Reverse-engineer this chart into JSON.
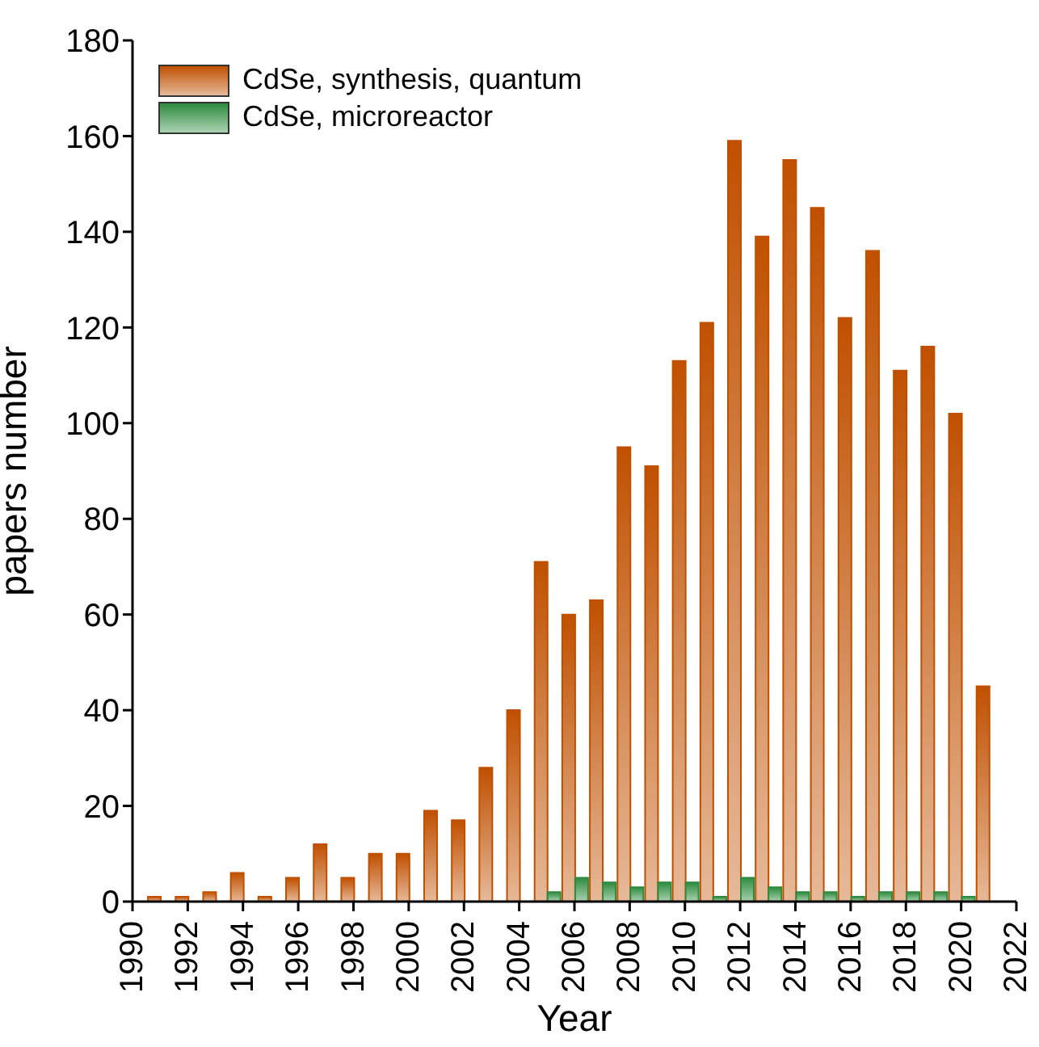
{
  "chart_data": {
    "type": "bar",
    "xlabel": "Year",
    "ylabel": "papers number",
    "x": [
      1991,
      1992,
      1993,
      1994,
      1995,
      1996,
      1997,
      1998,
      1999,
      2000,
      2001,
      2002,
      2003,
      2004,
      2005,
      2006,
      2007,
      2008,
      2009,
      2010,
      2011,
      2012,
      2013,
      2014,
      2015,
      2016,
      2017,
      2018,
      2019,
      2020,
      2021
    ],
    "series": [
      {
        "name": "CdSe, synthesis, quantum",
        "color": "#c05000",
        "values": [
          1,
          1,
          2,
          6,
          1,
          5,
          12,
          5,
          10,
          10,
          19,
          17,
          28,
          40,
          71,
          60,
          63,
          95,
          91,
          113,
          121,
          159,
          139,
          155,
          145,
          122,
          136,
          111,
          116,
          102,
          45
        ]
      },
      {
        "name": "CdSe, microreactor",
        "color": "#2e8b3e",
        "values": [
          null,
          null,
          null,
          null,
          null,
          null,
          null,
          null,
          null,
          null,
          null,
          null,
          null,
          null,
          2,
          5,
          4,
          3,
          4,
          4,
          1,
          5,
          3,
          2,
          2,
          1,
          2,
          2,
          2,
          1,
          null
        ]
      }
    ],
    "xlim": [
      1990,
      2022
    ],
    "xticks": [
      1990,
      1992,
      1994,
      1996,
      1998,
      2000,
      2002,
      2004,
      2006,
      2008,
      2010,
      2012,
      2014,
      2016,
      2018,
      2020,
      2022
    ],
    "ylim": [
      0,
      180
    ],
    "yticks": [
      0,
      20,
      40,
      60,
      80,
      100,
      120,
      140,
      160,
      180
    ],
    "grid": false,
    "legend": "top left"
  }
}
